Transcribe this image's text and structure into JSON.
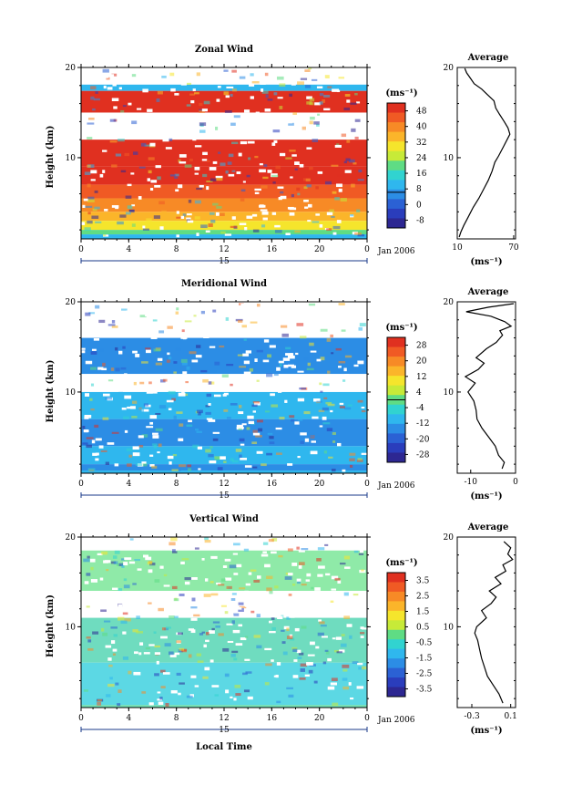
{
  "chart_data": [
    {
      "type": "heatmap",
      "title": "Zonal Wind",
      "ylabel": "Height (km)",
      "xlabel": "",
      "x_ticks": [
        "0",
        "4",
        "8",
        "12",
        "16",
        "20",
        "0"
      ],
      "y_ticks": [
        "20",
        "10"
      ],
      "date_label": "15",
      "date_suffix": "Jan 2006",
      "ylim": [
        1,
        20
      ],
      "xlim": [
        0,
        24
      ],
      "colorbar": {
        "unit": "(ms⁻¹)",
        "labels": [
          "48",
          "40",
          "32",
          "24",
          "16",
          "8",
          "0",
          "-8"
        ],
        "colors": [
          "#e03020",
          "#f05a24",
          "#f78a26",
          "#fbb52a",
          "#f5e52c",
          "#c7ea38",
          "#5fdc84",
          "#31d3d0",
          "#2fb7ee",
          "#2c8de5",
          "#2b61d4",
          "#2a3dbc",
          "#2d2792"
        ],
        "zero_line_from_top": 0.714
      },
      "field_bands": [
        {
          "height": 19,
          "color": "#ffffff"
        },
        {
          "height": 18.1,
          "color": "#2fb7ee"
        },
        {
          "height": 17.4,
          "color": "#e03020"
        },
        {
          "height": 15,
          "color": "#ffffff"
        },
        {
          "height": 12,
          "color": "#e03020"
        },
        {
          "height": 9,
          "color": "#e03020"
        },
        {
          "height": 7,
          "color": "#f05a24"
        },
        {
          "height": 5.5,
          "color": "#f78a26"
        },
        {
          "height": 4,
          "color": "#fbb52a"
        },
        {
          "height": 3,
          "color": "#f5e52c"
        },
        {
          "height": 2,
          "color": "#5fdc84"
        },
        {
          "height": 1.5,
          "color": "#2fb7ee"
        }
      ],
      "profile": {
        "title": "Average",
        "xlabel": "(ms⁻¹)",
        "x_ticks": [
          "10",
          "70"
        ],
        "xlim": [
          10,
          72
        ],
        "y_ticks": [
          "20",
          "10"
        ],
        "ylim": [
          1,
          20
        ],
        "points": [
          [
            12,
            1.2
          ],
          [
            14,
            1.8
          ],
          [
            17,
            2.5
          ],
          [
            22,
            3.5
          ],
          [
            27,
            4.5
          ],
          [
            33,
            5.5
          ],
          [
            38,
            6.5
          ],
          [
            43,
            7.5
          ],
          [
            47,
            8.5
          ],
          [
            50,
            9.5
          ],
          [
            54,
            10.2
          ],
          [
            59,
            11.2
          ],
          [
            63,
            12.0
          ],
          [
            66,
            12.6
          ],
          [
            64,
            13.3
          ],
          [
            60,
            14.0
          ],
          [
            55,
            14.8
          ],
          [
            51,
            15.5
          ],
          [
            49,
            16.3
          ],
          [
            42,
            17.0
          ],
          [
            36,
            17.6
          ],
          [
            28,
            18.2
          ],
          [
            24,
            18.8
          ],
          [
            20,
            19.4
          ],
          [
            18,
            19.9
          ]
        ]
      }
    },
    {
      "type": "heatmap",
      "title": "Meridional Wind",
      "ylabel": "Height (km)",
      "xlabel": "",
      "x_ticks": [
        "0",
        "4",
        "8",
        "12",
        "16",
        "20",
        "0"
      ],
      "y_ticks": [
        "20",
        "10"
      ],
      "date_label": "15",
      "date_suffix": "Jan 2006",
      "ylim": [
        1,
        20
      ],
      "xlim": [
        0,
        24
      ],
      "colorbar": {
        "unit": "(ms⁻¹)",
        "labels": [
          "28",
          "20",
          "12",
          "4",
          "-4",
          "-12",
          "-20",
          "-28"
        ],
        "colors": [
          "#e03020",
          "#f05a24",
          "#f78a26",
          "#fbb52a",
          "#f5e52c",
          "#c7ea38",
          "#5fdc84",
          "#31d3d0",
          "#2fb7ee",
          "#2c8de5",
          "#2b61d4",
          "#2a3dbc",
          "#2d2792"
        ],
        "zero_line_from_top": 0.5
      },
      "field_bands": [
        {
          "height": 18,
          "color": "#ffffff"
        },
        {
          "height": 16,
          "color": "#2c8de5"
        },
        {
          "height": 12,
          "color": "#ffffff"
        },
        {
          "height": 10,
          "color": "#2fb7ee"
        },
        {
          "height": 7,
          "color": "#2c8de5"
        },
        {
          "height": 4,
          "color": "#2fb7ee"
        },
        {
          "height": 2,
          "color": "#2c8de5"
        },
        {
          "height": 1.3,
          "color": "#2fb7ee"
        }
      ],
      "profile": {
        "title": "Average",
        "xlabel": "(ms⁻¹)",
        "x_ticks": [
          "-10",
          "0"
        ],
        "xlim": [
          -13,
          0
        ],
        "y_ticks": [
          "20",
          "10"
        ],
        "ylim": [
          1,
          20
        ],
        "points": [
          [
            -3,
            1.5
          ],
          [
            -2.5,
            2.2
          ],
          [
            -3.8,
            3.0
          ],
          [
            -4.5,
            4.0
          ],
          [
            -6,
            5.0
          ],
          [
            -7.5,
            6.0
          ],
          [
            -8.6,
            7.0
          ],
          [
            -8.8,
            8.0
          ],
          [
            -9.3,
            9.0
          ],
          [
            -10.6,
            10.0
          ],
          [
            -9,
            11.0
          ],
          [
            -11.2,
            11.7
          ],
          [
            -8.3,
            12.5
          ],
          [
            -7,
            13.2
          ],
          [
            -8.8,
            13.8
          ],
          [
            -6.5,
            14.8
          ],
          [
            -4.3,
            15.5
          ],
          [
            -2.9,
            16.3
          ],
          [
            -3.5,
            16.8
          ],
          [
            -1,
            17.3
          ],
          [
            -2.4,
            17.8
          ],
          [
            -5.5,
            18.4
          ],
          [
            -11,
            18.9
          ],
          [
            -6,
            19.4
          ],
          [
            -0.4,
            19.8
          ]
        ]
      }
    },
    {
      "type": "heatmap",
      "title": "Vertical Wind",
      "ylabel": "Height (km)",
      "xlabel": "Local Time",
      "x_ticks": [
        "0",
        "4",
        "8",
        "12",
        "16",
        "20",
        "0"
      ],
      "y_ticks": [
        "20",
        "10"
      ],
      "date_label": "15",
      "date_suffix": "Jan 2006",
      "ylim": [
        1,
        20
      ],
      "xlim": [
        0,
        24
      ],
      "colorbar": {
        "unit": "(ms⁻¹)",
        "labels": [
          "3.5",
          "2.5",
          "1.5",
          "0.5",
          "-0.5",
          "-1.5",
          "-2.5",
          "-3.5"
        ],
        "colors": [
          "#e03020",
          "#f05a24",
          "#f78a26",
          "#fbb52a",
          "#f5e52c",
          "#c7ea38",
          "#5fdc84",
          "#31d3d0",
          "#2fb7ee",
          "#2c8de5",
          "#2b61d4",
          "#2a3dbc",
          "#2d2792"
        ],
        "zero_line_from_top": null
      },
      "field_bands": [
        {
          "height": 18.5,
          "color": "#8feaa8"
        },
        {
          "height": 14,
          "color": "#ffffff"
        },
        {
          "height": 11,
          "color": "#6fdcbf"
        },
        {
          "height": 6,
          "color": "#5cd8e4"
        },
        {
          "height": 1.3,
          "color": "#74e0b6"
        }
      ],
      "profile": {
        "title": "Average",
        "xlabel": "(ms⁻¹)",
        "x_ticks": [
          "-0.3",
          "0.1"
        ],
        "xlim": [
          -0.45,
          0.15
        ],
        "y_ticks": [
          "20",
          "10"
        ],
        "ylim": [
          1,
          20
        ],
        "points": [
          [
            0.02,
            1.5
          ],
          [
            -0.02,
            2.5
          ],
          [
            -0.08,
            3.5
          ],
          [
            -0.14,
            4.5
          ],
          [
            -0.17,
            5.5
          ],
          [
            -0.2,
            6.5
          ],
          [
            -0.22,
            7.5
          ],
          [
            -0.24,
            8.5
          ],
          [
            -0.27,
            9.3
          ],
          [
            -0.25,
            10.0
          ],
          [
            -0.15,
            11.0
          ],
          [
            -0.2,
            11.8
          ],
          [
            -0.1,
            12.6
          ],
          [
            -0.05,
            13.3
          ],
          [
            -0.12,
            14.0
          ],
          [
            0.0,
            14.8
          ],
          [
            -0.06,
            15.5
          ],
          [
            0.05,
            16.2
          ],
          [
            0.02,
            16.9
          ],
          [
            0.12,
            17.5
          ],
          [
            0.07,
            18.1
          ],
          [
            0.1,
            18.8
          ],
          [
            0.03,
            19.5
          ]
        ]
      }
    }
  ]
}
